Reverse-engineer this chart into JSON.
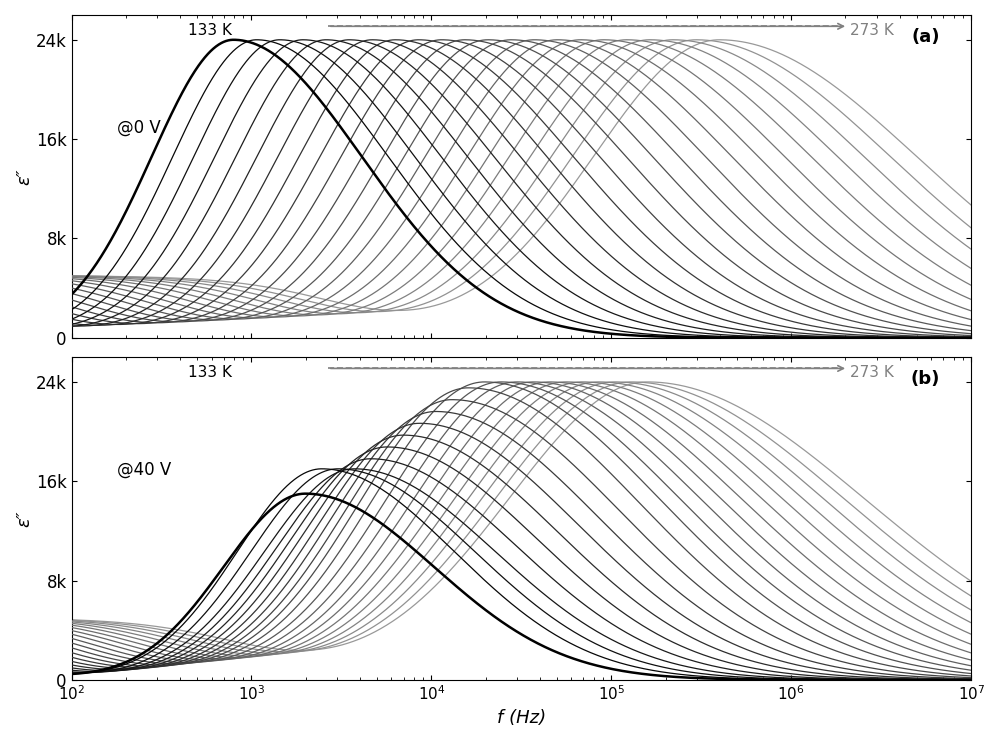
{
  "title_a": "(a)",
  "title_b": "(b)",
  "label_a": "@0 V",
  "label_b": "@40 V",
  "temp_label_start": "133 K",
  "temp_label_end": "273 K",
  "xlabel": "f (Hz)",
  "ylabel_a": "ε″",
  "ylabel_b": "ε″",
  "xlim_log": [
    2,
    7
  ],
  "ylim": [
    0,
    26000
  ],
  "yticks": [
    0,
    8000,
    16000,
    24000
  ],
  "ytick_labels": [
    "0",
    "8k",
    "16k",
    "24k"
  ],
  "n_curves": 22,
  "temp_min": 133,
  "temp_max": 273,
  "fig_width": 10.0,
  "fig_height": 7.42
}
